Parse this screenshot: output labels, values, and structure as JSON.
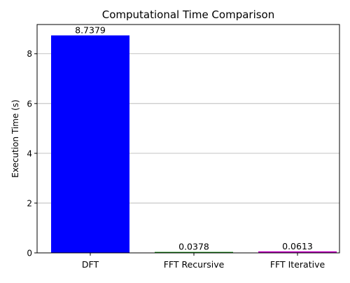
{
  "chart_data": {
    "type": "bar",
    "title": "Computational Time Comparison",
    "xlabel": "",
    "ylabel": "Execution Time (s)",
    "categories": [
      "DFT",
      "FFT Recursive",
      "FFT Iterative"
    ],
    "values": [
      8.7379,
      0.0378,
      0.0613
    ],
    "value_labels": [
      "8.7379",
      "0.0378",
      "0.0613"
    ],
    "colors": [
      "#0000ff",
      "#008000",
      "#bf00bf"
    ],
    "ylim": [
      0,
      9.175
    ],
    "yticks": [
      0,
      2,
      4,
      6,
      8
    ],
    "grid": {
      "axis": "y",
      "on": true
    }
  }
}
